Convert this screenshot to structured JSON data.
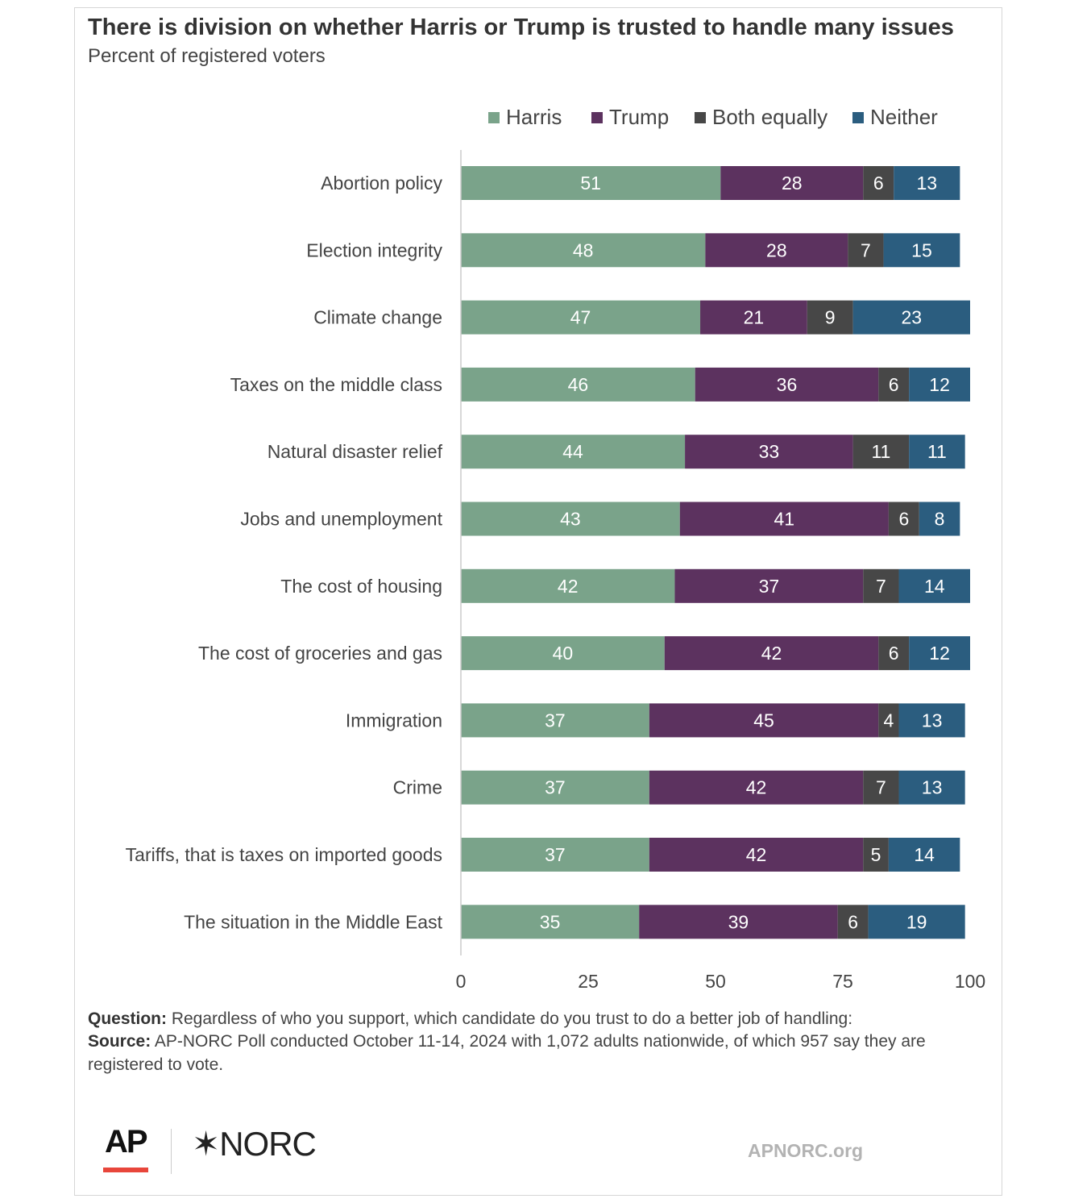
{
  "header": {
    "title": "There is division on whether Harris or Trump is trusted to handle many issues",
    "subtitle": "Percent of registered voters"
  },
  "chart_data": {
    "type": "bar",
    "orientation": "horizontal",
    "stacked": true,
    "categories": [
      "Abortion policy",
      "Election integrity",
      "Climate change",
      "Taxes on the middle class",
      "Natural disaster relief",
      "Jobs and unemployment",
      "The cost of housing",
      "The cost of groceries and gas",
      "Immigration",
      "Crime",
      "Tariffs, that is taxes on imported goods",
      "The situation in the Middle East"
    ],
    "series": [
      {
        "name": "Harris",
        "color": "#7aa38a",
        "values": [
          51,
          48,
          47,
          46,
          44,
          43,
          42,
          40,
          37,
          37,
          37,
          35
        ]
      },
      {
        "name": "Trump",
        "color": "#5c325f",
        "values": [
          28,
          28,
          21,
          36,
          33,
          41,
          37,
          42,
          45,
          42,
          42,
          39
        ]
      },
      {
        "name": "Both equally",
        "color": "#474747",
        "values": [
          6,
          7,
          9,
          6,
          11,
          6,
          7,
          6,
          4,
          7,
          5,
          6
        ]
      },
      {
        "name": "Neither",
        "color": "#2b5d7f",
        "values": [
          13,
          15,
          23,
          12,
          11,
          8,
          14,
          12,
          13,
          13,
          14,
          19
        ]
      }
    ],
    "xlim": [
      0,
      100
    ],
    "xticks": [
      0,
      25,
      50,
      75,
      100
    ],
    "legend_position": "top-right",
    "grid": false
  },
  "footer": {
    "question_label": "Question:",
    "question_text": " Regardless of who you support, which candidate do you trust to do a better job of handling:",
    "source_label": "Source:",
    "source_text": " AP-NORC Poll conducted October 11-14, 2024 with 1,072 adults nationwide, of which 957 say they are registered to vote.",
    "logo_ap": "AP",
    "logo_norc": "✶NORC",
    "site": "APNORC.org"
  }
}
